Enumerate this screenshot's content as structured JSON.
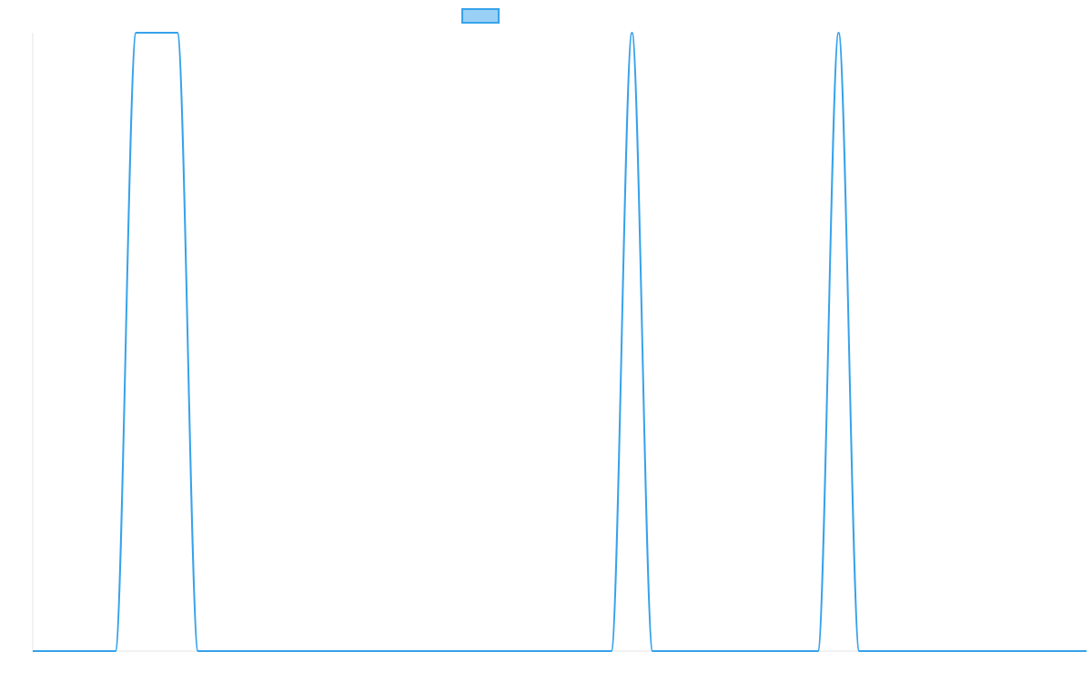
{
  "chart_data": {
    "type": "line",
    "title": "",
    "xlabel": "",
    "ylabel": "",
    "xlim": [
      0,
      51
    ],
    "ylim": [
      0,
      1
    ],
    "grid": false,
    "legend": {
      "position": "top-center",
      "entries": [
        {
          "label": "",
          "color": "#36A2EB",
          "fill": "#9AD0F5"
        }
      ]
    },
    "series": [
      {
        "color": "#36A2EB",
        "smooth": true,
        "x": [
          0,
          1,
          2,
          3,
          4,
          5,
          6,
          7,
          8,
          9,
          10,
          11,
          12,
          13,
          14,
          15,
          16,
          17,
          18,
          19,
          20,
          21,
          22,
          23,
          24,
          25,
          26,
          27,
          28,
          29,
          30,
          31,
          32,
          33,
          34,
          35,
          36,
          37,
          38,
          39,
          40,
          41,
          42,
          43,
          44,
          45,
          46,
          47,
          48,
          49,
          50,
          51
        ],
        "y": [
          0,
          0,
          0,
          0,
          0,
          1,
          1,
          1,
          0,
          0,
          0,
          0,
          0,
          0,
          0,
          0,
          0,
          0,
          0,
          0,
          0,
          0,
          0,
          0,
          0,
          0,
          0,
          0,
          0,
          1,
          0,
          0,
          0,
          0,
          0,
          0,
          0,
          0,
          0,
          1,
          0,
          0,
          0,
          0,
          0,
          0,
          0,
          0,
          0,
          0,
          0,
          0
        ]
      }
    ]
  }
}
